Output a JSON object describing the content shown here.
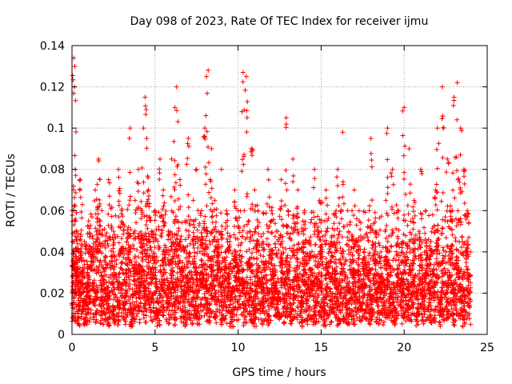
{
  "chart_data": {
    "type": "scatter",
    "title": "Day 098 of 2023, Rate Of TEC Index for receiver ijmu",
    "xlabel": "GPS time / hours",
    "ylabel": "ROTI / TECUs",
    "xlim": [
      0,
      25
    ],
    "ylim": [
      0,
      0.14
    ],
    "xticks": [
      0,
      5,
      10,
      15,
      20,
      25
    ],
    "xtick_labels": [
      "0",
      "5",
      "10",
      "15",
      "20",
      "25"
    ],
    "yticks": [
      0,
      0.02,
      0.04,
      0.06,
      0.08,
      0.1,
      0.12,
      0.14
    ],
    "ytick_labels": [
      "0",
      "0.02",
      "0.04",
      "0.06",
      "0.08",
      "0.1",
      "0.12",
      "0.14"
    ],
    "grid": true,
    "marker": "plus",
    "color": "#ff0000",
    "series": [
      {
        "x": [
          0.0,
          0.05,
          0.1,
          0.15,
          0.2,
          0.25,
          0.3,
          0.4,
          0.5,
          0.6,
          0.75,
          0.9,
          1.0,
          1.2,
          1.4,
          1.6,
          1.8,
          2.0,
          2.2,
          2.5,
          2.8,
          3.0,
          3.3,
          3.5,
          3.8,
          4.0,
          4.2,
          4.3,
          4.4,
          4.5,
          4.6,
          4.8,
          5.0,
          5.3,
          5.5,
          5.8,
          6.0,
          6.2,
          6.3,
          6.5,
          6.8,
          7.0,
          7.3,
          7.5,
          7.8,
          8.0,
          8.1,
          8.2,
          8.4,
          8.6,
          8.8,
          9.0,
          9.3,
          9.5,
          9.8,
          10.0,
          10.3,
          10.5,
          10.8,
          11.0,
          11.2,
          11.5,
          11.8,
          12.0,
          12.3,
          12.6,
          12.9,
          13.0,
          13.3,
          13.6,
          13.9,
          14.0,
          14.3,
          14.6,
          14.9,
          15.0,
          15.3,
          15.6,
          15.9,
          16.0,
          16.3,
          16.6,
          16.9,
          17.0,
          17.3,
          17.6,
          17.9,
          18.0,
          18.3,
          18.6,
          18.9,
          19.0,
          19.3,
          19.6,
          19.9,
          20.0,
          20.3,
          20.6,
          20.9,
          21.0,
          21.3,
          21.6,
          21.9,
          22.0,
          22.3,
          22.6,
          22.9,
          23.0,
          23.2,
          23.4,
          23.6,
          23.8,
          24.0
        ],
        "y": [
          0.06,
          0.045,
          0.134,
          0.12,
          0.08,
          0.05,
          0.035,
          0.04,
          0.075,
          0.03,
          0.045,
          0.025,
          0.055,
          0.04,
          0.07,
          0.085,
          0.06,
          0.045,
          0.075,
          0.05,
          0.08,
          0.06,
          0.045,
          0.1,
          0.065,
          0.08,
          0.06,
          0.1,
          0.115,
          0.095,
          0.07,
          0.05,
          0.06,
          0.085,
          0.07,
          0.05,
          0.085,
          0.11,
          0.12,
          0.075,
          0.055,
          0.095,
          0.065,
          0.08,
          0.06,
          0.1,
          0.125,
          0.128,
          0.09,
          0.065,
          0.05,
          0.08,
          0.06,
          0.045,
          0.07,
          0.06,
          0.127,
          0.125,
          0.09,
          0.07,
          0.06,
          0.045,
          0.08,
          0.06,
          0.05,
          0.075,
          0.105,
          0.06,
          0.085,
          0.07,
          0.055,
          0.06,
          0.045,
          0.08,
          0.065,
          0.05,
          0.07,
          0.045,
          0.06,
          0.08,
          0.098,
          0.06,
          0.045,
          0.07,
          0.055,
          0.04,
          0.06,
          0.095,
          0.05,
          0.04,
          0.065,
          0.1,
          0.08,
          0.06,
          0.045,
          0.11,
          0.09,
          0.065,
          0.05,
          0.08,
          0.06,
          0.045,
          0.07,
          0.1,
          0.12,
          0.085,
          0.06,
          0.115,
          0.122,
          0.1,
          0.08,
          0.06,
          0.04
        ],
        "baseline_points": {
          "x": [
            0.0,
            0.2,
            0.4,
            0.6,
            0.8,
            1.0,
            1.2,
            1.4,
            1.6,
            1.8,
            2.0,
            2.2,
            2.4,
            2.6,
            2.8,
            3.0,
            3.2,
            3.4,
            3.6,
            3.8,
            4.0,
            4.2,
            4.4,
            4.6,
            4.8,
            5.0,
            5.2,
            5.4,
            5.6,
            5.8,
            6.0,
            6.2,
            6.4,
            6.6,
            6.8,
            7.0,
            7.2,
            7.4,
            7.6,
            7.8,
            8.0,
            8.2,
            8.4,
            8.6,
            8.8,
            9.0,
            9.2,
            9.4,
            9.6,
            9.8,
            10.0,
            10.2,
            10.4,
            10.6,
            10.8,
            11.0,
            11.2,
            11.4,
            11.6,
            11.8,
            12.0,
            12.2,
            12.4,
            12.6,
            12.8,
            13.0,
            13.2,
            13.4,
            13.6,
            13.8,
            14.0,
            14.2,
            14.4,
            14.6,
            14.8,
            15.0,
            15.2,
            15.4,
            15.6,
            15.8,
            16.0,
            16.2,
            16.4,
            16.6,
            16.8,
            17.0,
            17.2,
            17.4,
            17.6,
            17.8,
            18.0,
            18.2,
            18.4,
            18.6,
            18.8,
            19.0,
            19.2,
            19.4,
            19.6,
            19.8,
            20.0,
            20.2,
            20.4,
            20.6,
            20.8,
            21.0,
            21.2,
            21.4,
            21.6,
            21.8,
            22.0,
            22.2,
            22.4,
            22.6,
            22.8,
            23.0,
            23.2,
            23.4,
            23.6,
            23.8,
            24.0
          ],
          "y": [
            0.015,
            0.02,
            0.012,
            0.025,
            0.01,
            0.018,
            0.022,
            0.014,
            0.03,
            0.016,
            0.02,
            0.012,
            0.025,
            0.018,
            0.014,
            0.022,
            0.016,
            0.028,
            0.012,
            0.02,
            0.018,
            0.025,
            0.014,
            0.03,
            0.016,
            0.02,
            0.012,
            0.018,
            0.024,
            0.015,
            0.02,
            0.014,
            0.026,
            0.018,
            0.012,
            0.022,
            0.016,
            0.02,
            0.014,
            0.025,
            0.018,
            0.012,
            0.02,
            0.016,
            0.024,
            0.014,
            0.02,
            0.018,
            0.012,
            0.022,
            0.016,
            0.025,
            0.014,
            0.02,
            0.018,
            0.012,
            0.024,
            0.016,
            0.02,
            0.014,
            0.022,
            0.018,
            0.012,
            0.025,
            0.016,
            0.02,
            0.014,
            0.018,
            0.024,
            0.012,
            0.02,
            0.016,
            0.022,
            0.014,
            0.018,
            0.025,
            0.012,
            0.02,
            0.016,
            0.024,
            0.014,
            0.02,
            0.018,
            0.012,
            0.022,
            0.016,
            0.025,
            0.014,
            0.02,
            0.018,
            0.012,
            0.024,
            0.016,
            0.02,
            0.014,
            0.022,
            0.018,
            0.012,
            0.025,
            0.016,
            0.02,
            0.014,
            0.018,
            0.024,
            0.012,
            0.02,
            0.016,
            0.022,
            0.014,
            0.018,
            0.025,
            0.012,
            0.02,
            0.016,
            0.024,
            0.014,
            0.02,
            0.018,
            0.012,
            0.022,
            0.016
          ]
        }
      }
    ]
  }
}
